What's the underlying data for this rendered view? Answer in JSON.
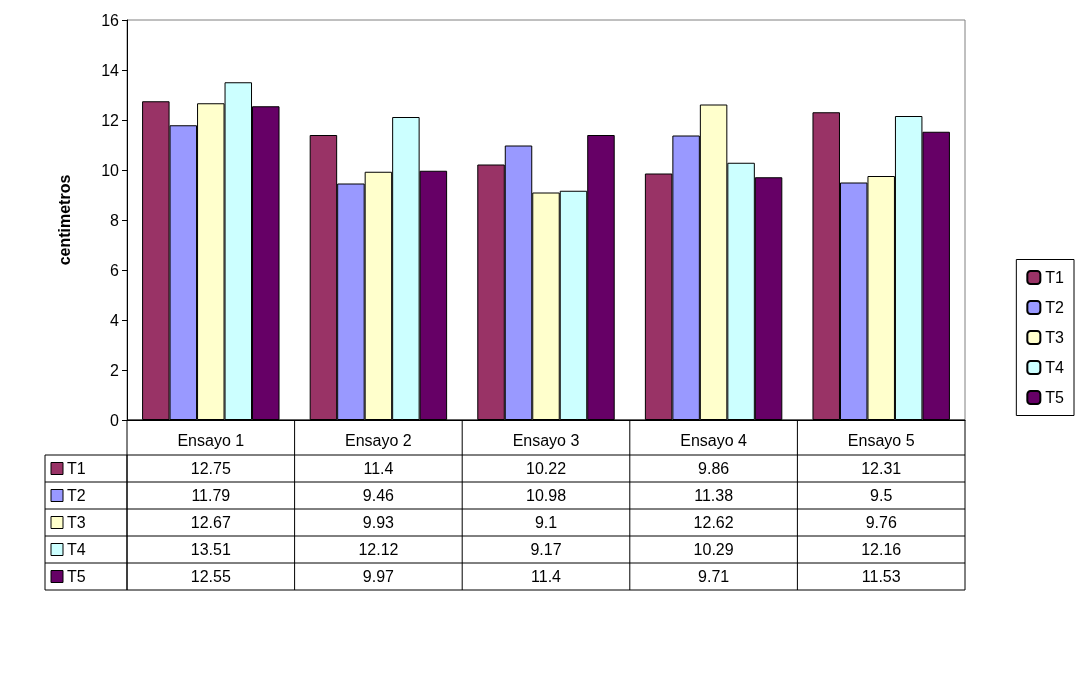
{
  "chart_data": {
    "type": "bar",
    "ylabel": "centimetros",
    "categories": [
      "Ensayo 1",
      "Ensayo 2",
      "Ensayo 3",
      "Ensayo 4",
      "Ensayo 5"
    ],
    "series": [
      {
        "name": "T1",
        "color": "#993366",
        "values": [
          12.75,
          11.4,
          10.22,
          9.86,
          12.31
        ]
      },
      {
        "name": "T2",
        "color": "#9999ff",
        "values": [
          11.79,
          9.46,
          10.98,
          11.38,
          9.5
        ]
      },
      {
        "name": "T3",
        "color": "#ffffcc",
        "values": [
          12.67,
          9.93,
          9.1,
          12.62,
          9.76
        ]
      },
      {
        "name": "T4",
        "color": "#ccffff",
        "values": [
          13.51,
          12.12,
          9.17,
          10.29,
          12.16
        ]
      },
      {
        "name": "T5",
        "color": "#660066",
        "values": [
          12.55,
          9.97,
          11.4,
          9.71,
          11.53
        ]
      }
    ],
    "ylim": [
      0,
      16
    ],
    "yticks": [
      0,
      2,
      4,
      6,
      8,
      10,
      12,
      14,
      16
    ],
    "grid": false,
    "legend": "right",
    "data_labels": true
  }
}
